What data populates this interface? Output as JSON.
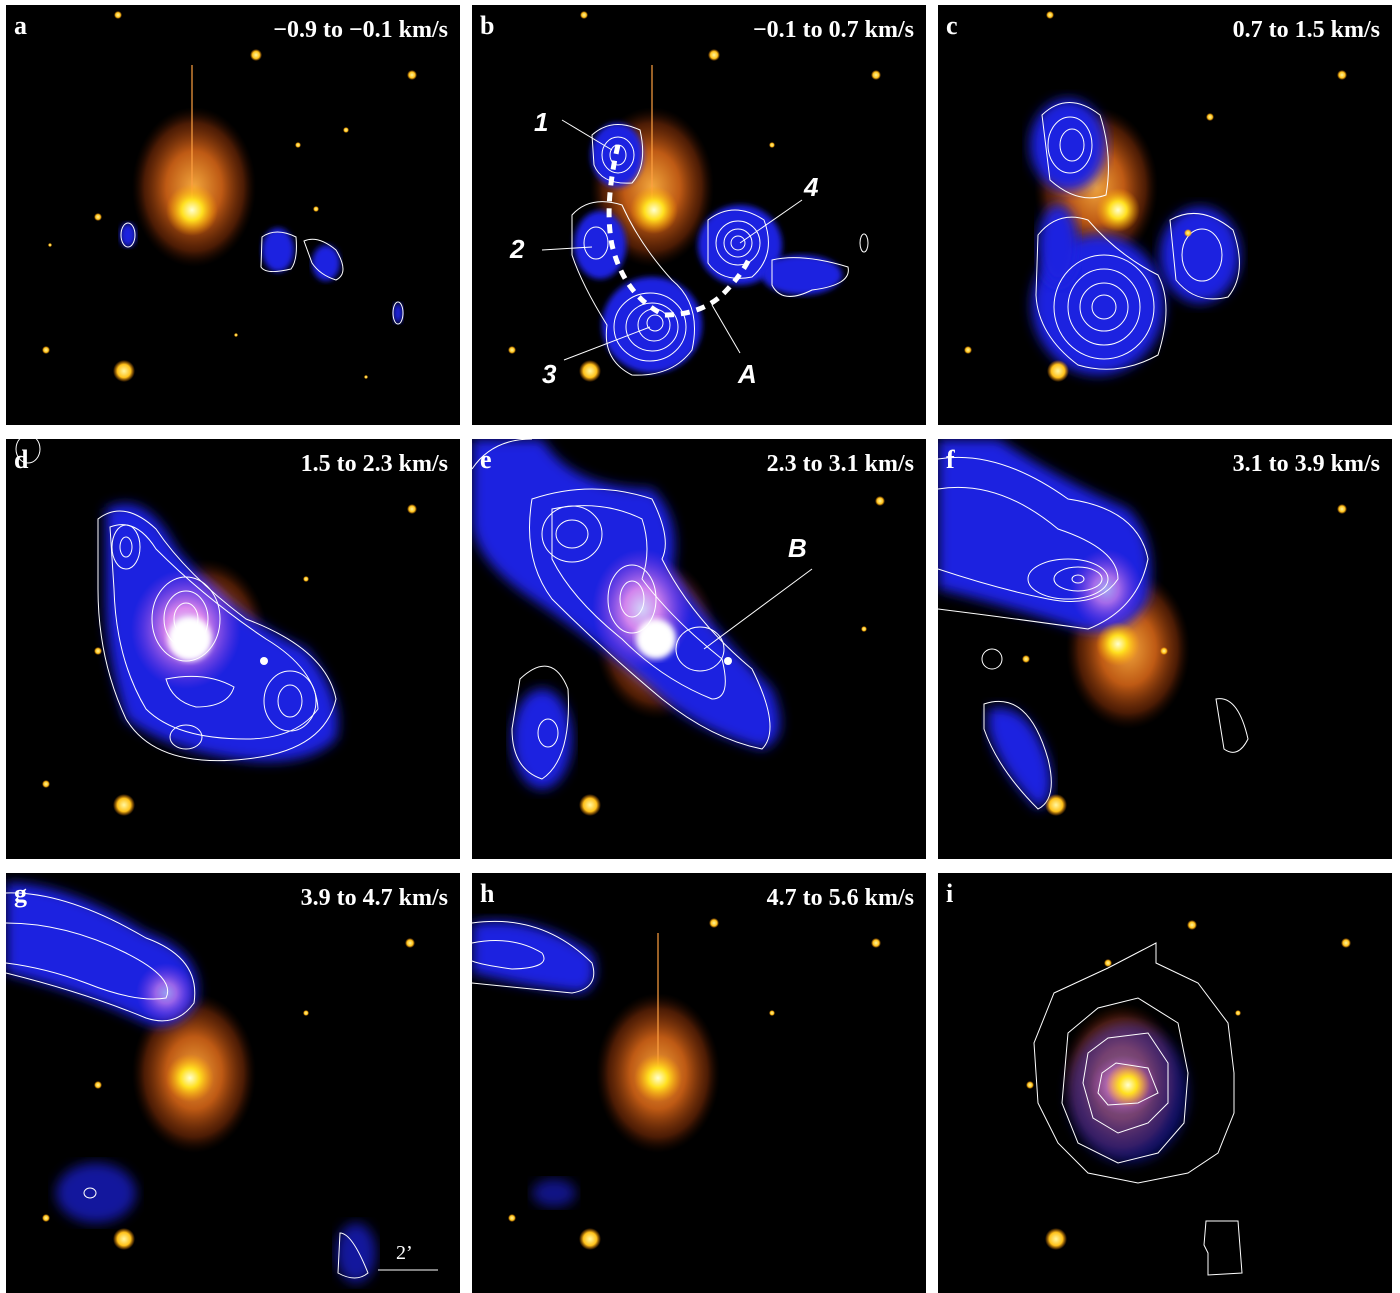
{
  "panels": [
    {
      "letter": "a",
      "velocity": "−0.9 to −0.1 km/s"
    },
    {
      "letter": "b",
      "velocity": "−0.1 to 0.7 km/s"
    },
    {
      "letter": "c",
      "velocity": "0.7 to 1.5 km/s"
    },
    {
      "letter": "d",
      "velocity": "1.5 to 2.3 km/s"
    },
    {
      "letter": "e",
      "velocity": "2.3 to 3.1 km/s"
    },
    {
      "letter": "f",
      "velocity": "3.1 to 3.9 km/s"
    },
    {
      "letter": "g",
      "velocity": "3.9 to 4.7 km/s"
    },
    {
      "letter": "h",
      "velocity": "4.7 to 5.6 km/s"
    },
    {
      "letter": "i",
      "velocity": ""
    }
  ],
  "annotations": {
    "b": [
      "1",
      "2",
      "3",
      "4",
      "A"
    ],
    "e": [
      "B"
    ]
  },
  "scale_bar": "2’",
  "colors": {
    "nebula": "#e8781a",
    "star": "#ffd21c",
    "emission": "#1a20e0",
    "contour": "#ffffff",
    "background": "#000000"
  }
}
